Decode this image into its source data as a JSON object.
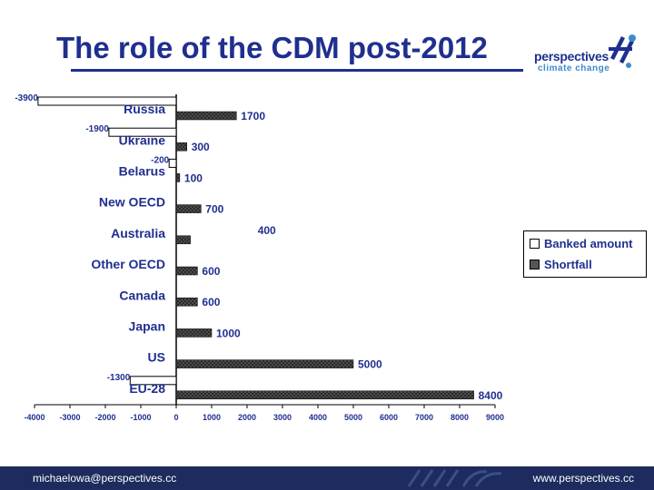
{
  "slide": {
    "title": "The role of the CDM post-2012"
  },
  "logo": {
    "line1": "perspectives",
    "line2": "climate change"
  },
  "footer": {
    "email": "michaelowa@perspectives.cc",
    "website": "www.perspectives.cc"
  },
  "colors": {
    "title": "#1f2f8f",
    "footer_bg": "#1d2b5e",
    "shortfall_fill": "#555555",
    "banked_fill": "#ffffff"
  },
  "chart_data": {
    "type": "bar",
    "orientation": "horizontal",
    "categories": [
      "Russia",
      "Ukraine",
      "Belarus",
      "New OECD",
      "Australia",
      "Other OECD",
      "Canada",
      "Japan",
      "US",
      "EU-28"
    ],
    "series": [
      {
        "name": "Banked amount",
        "values": [
          -3900,
          -1900,
          -200,
          null,
          null,
          null,
          null,
          null,
          null,
          -1300
        ],
        "labels": [
          "-3900",
          "-1900",
          "-200",
          "",
          "",
          "",
          "",
          "",
          "",
          "-1300"
        ]
      },
      {
        "name": "Shortfall",
        "values": [
          1700,
          300,
          100,
          700,
          400,
          600,
          600,
          1000,
          5000,
          8400
        ],
        "labels": [
          "1700",
          "300",
          "100",
          "700",
          "400",
          "600",
          "600",
          "1000",
          "5000",
          "8400"
        ]
      }
    ],
    "xlim": [
      -4000,
      9000
    ],
    "xticks": [
      -4000,
      -3000,
      -2000,
      -1000,
      0,
      1000,
      2000,
      3000,
      4000,
      5000,
      6000,
      7000,
      8000,
      9000
    ],
    "xtick_labels": [
      "-4000",
      "-3000",
      "-2000",
      "-1000",
      "0",
      "1000",
      "2000",
      "3000",
      "4000",
      "5000",
      "6000",
      "7000",
      "8000",
      "9000"
    ],
    "grid": true,
    "legend": "right"
  }
}
